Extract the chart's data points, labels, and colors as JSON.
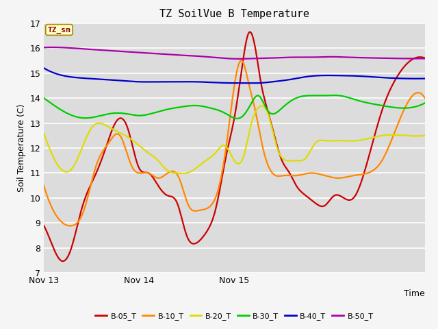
{
  "title": "TZ SoilVue B Temperature",
  "xlabel": "Time",
  "ylabel": "Soil Temperature (C)",
  "annotation": "TZ_sm",
  "ylim": [
    7.0,
    17.0
  ],
  "yticks": [
    7.0,
    8.0,
    9.0,
    10.0,
    11.0,
    12.0,
    13.0,
    14.0,
    15.0,
    16.0,
    17.0
  ],
  "background_color": "#dcdcdc",
  "fig_background": "#f5f5f5",
  "series": {
    "B-05_T": {
      "color": "#cc0000",
      "x": [
        0,
        0.08,
        0.18,
        0.28,
        0.4,
        0.55,
        0.65,
        0.75,
        0.88,
        1.0,
        1.1,
        1.2,
        1.3,
        1.4,
        1.5,
        1.6,
        1.7,
        1.8,
        1.92,
        2.0,
        2.08,
        2.15,
        2.22,
        2.28,
        2.35,
        2.42,
        2.5,
        2.58,
        2.65,
        2.75,
        2.85,
        2.95,
        3.05,
        3.15,
        3.25,
        3.4,
        3.55,
        3.7,
        3.85,
        4.0
      ],
      "y": [
        8.9,
        8.2,
        7.5,
        7.9,
        9.6,
        11.0,
        12.0,
        13.0,
        12.8,
        11.2,
        11.0,
        10.5,
        10.1,
        9.8,
        8.5,
        8.2,
        8.6,
        9.5,
        11.8,
        13.2,
        15.2,
        16.6,
        16.0,
        14.6,
        13.5,
        12.5,
        11.5,
        11.0,
        10.5,
        10.1,
        9.8,
        9.7,
        10.1,
        10.0,
        10.0,
        11.5,
        13.5,
        14.8,
        15.5,
        15.6
      ]
    },
    "B-10_T": {
      "color": "#ff8800",
      "x": [
        0,
        0.1,
        0.2,
        0.3,
        0.42,
        0.55,
        0.68,
        0.8,
        0.92,
        1.0,
        1.1,
        1.2,
        1.3,
        1.42,
        1.52,
        1.62,
        1.72,
        1.82,
        1.92,
        2.0,
        2.08,
        2.15,
        2.22,
        2.3,
        2.4,
        2.52,
        2.65,
        2.8,
        2.95,
        3.1,
        3.25,
        3.4,
        3.55,
        3.7,
        3.85,
        4.0
      ],
      "y": [
        10.5,
        9.5,
        9.0,
        8.9,
        9.5,
        11.3,
        12.2,
        12.5,
        11.3,
        11.0,
        11.0,
        10.8,
        11.0,
        10.8,
        9.7,
        9.5,
        9.6,
        10.2,
        12.2,
        14.5,
        15.5,
        14.6,
        13.5,
        12.0,
        11.0,
        10.9,
        10.9,
        11.0,
        10.9,
        10.8,
        10.9,
        11.0,
        11.5,
        12.8,
        14.0,
        14.0
      ]
    },
    "B-20_T": {
      "color": "#dddd00",
      "x": [
        0,
        0.15,
        0.3,
        0.5,
        0.7,
        0.9,
        1.0,
        1.1,
        1.2,
        1.3,
        1.4,
        1.5,
        1.6,
        1.7,
        1.8,
        1.9,
        2.0,
        2.1,
        2.18,
        2.25,
        2.35,
        2.45,
        2.55,
        2.65,
        2.75,
        2.85,
        2.95,
        3.1,
        3.3,
        3.55,
        3.8,
        4.0
      ],
      "y": [
        12.6,
        11.3,
        11.2,
        12.8,
        12.8,
        12.4,
        12.1,
        11.8,
        11.5,
        11.1,
        11.0,
        11.0,
        11.2,
        11.5,
        11.8,
        12.1,
        11.5,
        11.7,
        13.0,
        13.6,
        13.4,
        12.0,
        11.5,
        11.5,
        11.6,
        12.2,
        12.3,
        12.3,
        12.3,
        12.5,
        12.5,
        12.5
      ]
    },
    "B-30_T": {
      "color": "#00cc00",
      "x": [
        0,
        0.15,
        0.3,
        0.45,
        0.6,
        0.75,
        0.9,
        1.0,
        1.15,
        1.3,
        1.45,
        1.6,
        1.75,
        1.9,
        2.0,
        2.08,
        2.18,
        2.25,
        2.35,
        2.5,
        2.65,
        2.8,
        2.95,
        3.1,
        3.3,
        3.55,
        3.8,
        4.0
      ],
      "y": [
        14.0,
        13.6,
        13.3,
        13.2,
        13.3,
        13.4,
        13.35,
        13.3,
        13.4,
        13.55,
        13.65,
        13.7,
        13.6,
        13.4,
        13.2,
        13.25,
        13.8,
        14.1,
        13.5,
        13.6,
        14.0,
        14.1,
        14.1,
        14.1,
        13.9,
        13.7,
        13.6,
        13.8
      ]
    },
    "B-40_T": {
      "color": "#0000cc",
      "x": [
        0,
        0.2,
        0.4,
        0.6,
        0.8,
        1.0,
        1.2,
        1.4,
        1.6,
        1.8,
        2.0,
        2.15,
        2.25,
        2.4,
        2.6,
        2.75,
        2.9,
        3.1,
        3.3,
        3.55,
        3.8,
        4.0
      ],
      "y": [
        15.2,
        14.9,
        14.8,
        14.75,
        14.7,
        14.65,
        14.65,
        14.65,
        14.65,
        14.62,
        14.6,
        14.6,
        14.6,
        14.65,
        14.75,
        14.85,
        14.9,
        14.9,
        14.88,
        14.82,
        14.78,
        14.78
      ]
    },
    "B-50_T": {
      "color": "#aa00aa",
      "x": [
        0,
        0.2,
        0.4,
        0.6,
        0.8,
        1.0,
        1.2,
        1.4,
        1.6,
        1.8,
        2.0,
        2.2,
        2.4,
        2.6,
        2.8,
        3.0,
        3.2,
        3.5,
        3.8,
        4.0
      ],
      "y": [
        16.02,
        16.02,
        15.97,
        15.92,
        15.87,
        15.82,
        15.77,
        15.72,
        15.68,
        15.62,
        15.57,
        15.58,
        15.6,
        15.63,
        15.63,
        15.65,
        15.63,
        15.6,
        15.58,
        15.58
      ]
    }
  },
  "xtick_positions": [
    0,
    1,
    2,
    3,
    4
  ],
  "xtick_labels": [
    "Nov 13",
    "Nov 14",
    "Nov 15",
    "",
    ""
  ],
  "legend_order": [
    "B-05_T",
    "B-10_T",
    "B-20_T",
    "B-30_T",
    "B-40_T",
    "B-50_T"
  ]
}
